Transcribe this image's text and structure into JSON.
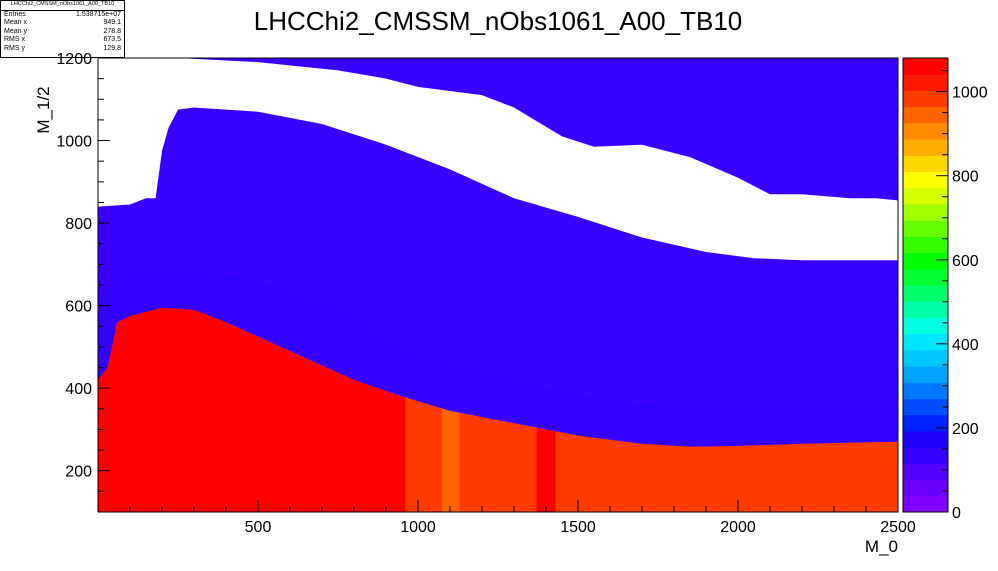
{
  "stats": {
    "name": "LHCChi2_CMSSM_nObs1061_A00_TB10",
    "rows": [
      {
        "label": "Entries",
        "value": "1.538715e+07"
      },
      {
        "label": "Mean x",
        "value": "949.1"
      },
      {
        "label": "Mean y",
        "value": "278.8"
      },
      {
        "label": "RMS x",
        "value": "673.5"
      },
      {
        "label": "RMS y",
        "value": "129.8"
      }
    ]
  },
  "chart_data": {
    "type": "heatmap",
    "title": "LHCChi2_CMSSM_nObs1061_A00_TB10",
    "xlabel": "M_0",
    "ylabel": "M_1/2",
    "xlim": [
      0,
      2500
    ],
    "ylim": [
      100,
      1200
    ],
    "xticks": [
      "500",
      "1000",
      "1500",
      "2000",
      "2500"
    ],
    "yticks": [
      "200",
      "400",
      "600",
      "800",
      "1000",
      "1200"
    ],
    "zlim": [
      0,
      1080
    ],
    "zticks": [
      "0",
      "200",
      "400",
      "600",
      "800",
      "1000"
    ],
    "colorbar_colors": [
      "#7f00ff",
      "#6a00ff",
      "#5400ff",
      "#3300ff",
      "#1f00ff",
      "#0022ff",
      "#004cff",
      "#0077ff",
      "#00a4ff",
      "#00c8ff",
      "#00e5ff",
      "#00ffe0",
      "#00ffaa",
      "#00ff6a",
      "#00ff33",
      "#00ff00",
      "#33ff00",
      "#66ff00",
      "#a0ff00",
      "#d4ff00",
      "#ffff00",
      "#ffd800",
      "#ffae00",
      "#ff8b00",
      "#ff6400",
      "#ff3c00",
      "#ff1800",
      "#ff0000"
    ],
    "regions": [
      {
        "name": "white-excluded-band",
        "value": null,
        "color": "#ffffff",
        "upper": [
          [
            0,
            1200
          ],
          [
            100,
            1200
          ],
          [
            250,
            1200
          ],
          [
            500,
            1190
          ],
          [
            750,
            1170
          ],
          [
            900,
            1150
          ],
          [
            1000,
            1130
          ],
          [
            1200,
            1110
          ],
          [
            1300,
            1080
          ],
          [
            1450,
            1010
          ],
          [
            1550,
            985
          ],
          [
            1700,
            990
          ],
          [
            1850,
            960
          ],
          [
            2000,
            910
          ],
          [
            2100,
            870
          ],
          [
            2200,
            870
          ],
          [
            2350,
            860
          ],
          [
            2430,
            860
          ],
          [
            2500,
            855
          ]
        ],
        "lower": [
          [
            2500,
            710
          ],
          [
            2350,
            710
          ],
          [
            2200,
            710
          ],
          [
            2050,
            715
          ],
          [
            1900,
            730
          ],
          [
            1700,
            765
          ],
          [
            1500,
            815
          ],
          [
            1300,
            860
          ],
          [
            1100,
            930
          ],
          [
            900,
            990
          ],
          [
            700,
            1040
          ],
          [
            500,
            1070
          ],
          [
            300,
            1080
          ],
          [
            250,
            1075
          ],
          [
            220,
            1030
          ],
          [
            200,
            975
          ],
          [
            180,
            860
          ],
          [
            150,
            860
          ],
          [
            100,
            845
          ],
          [
            0,
            840
          ]
        ]
      },
      {
        "name": "blue-ring-band",
        "value": 100,
        "color": "#3300ff",
        "upper": [
          [
            0,
            610
          ],
          [
            50,
            650
          ],
          [
            100,
            670
          ],
          [
            200,
            685
          ],
          [
            400,
            675
          ],
          [
            600,
            640
          ],
          [
            800,
            570
          ],
          [
            950,
            500
          ],
          [
            1100,
            455
          ],
          [
            1300,
            420
          ],
          [
            1500,
            385
          ],
          [
            1700,
            360
          ],
          [
            1850,
            355
          ],
          [
            2000,
            355
          ],
          [
            2200,
            355
          ],
          [
            2350,
            355
          ],
          [
            2500,
            350
          ]
        ],
        "lower": [
          [
            2500,
            270
          ],
          [
            2350,
            268
          ],
          [
            2200,
            265
          ],
          [
            2000,
            260
          ],
          [
            1850,
            258
          ],
          [
            1700,
            265
          ],
          [
            1500,
            285
          ],
          [
            1300,
            315
          ],
          [
            1100,
            345
          ],
          [
            950,
            380
          ],
          [
            800,
            420
          ],
          [
            600,
            490
          ],
          [
            400,
            560
          ],
          [
            300,
            580
          ],
          [
            200,
            595
          ],
          [
            100,
            575
          ],
          [
            60,
            560
          ],
          [
            30,
            450
          ],
          [
            0,
            420
          ]
        ]
      },
      {
        "name": "red-high-chi2-core",
        "value": 1080,
        "color": "#ff0000",
        "boundary": [
          [
            0,
            100
          ],
          [
            0,
            420
          ],
          [
            30,
            450
          ],
          [
            60,
            560
          ],
          [
            100,
            575
          ],
          [
            200,
            595
          ],
          [
            300,
            590
          ],
          [
            400,
            560
          ],
          [
            600,
            490
          ],
          [
            800,
            420
          ],
          [
            950,
            380
          ],
          [
            1100,
            345
          ],
          [
            1300,
            315
          ],
          [
            1500,
            285
          ],
          [
            1700,
            265
          ],
          [
            1850,
            258
          ],
          [
            2000,
            260
          ],
          [
            2200,
            265
          ],
          [
            2350,
            268
          ],
          [
            2500,
            270
          ],
          [
            2500,
            100
          ]
        ]
      },
      {
        "name": "orange-strips",
        "value": 1010,
        "color": "#ff3c00",
        "strips_x": [
          [
            960,
            1075
          ],
          [
            1130,
            1370
          ],
          [
            1430,
            2500
          ]
        ]
      },
      {
        "name": "amber-strip",
        "value": 960,
        "color": "#ff6400",
        "strips_x": [
          [
            1075,
            1130
          ]
        ]
      }
    ],
    "background": {
      "value": 60,
      "color": "#3a00ff"
    }
  }
}
